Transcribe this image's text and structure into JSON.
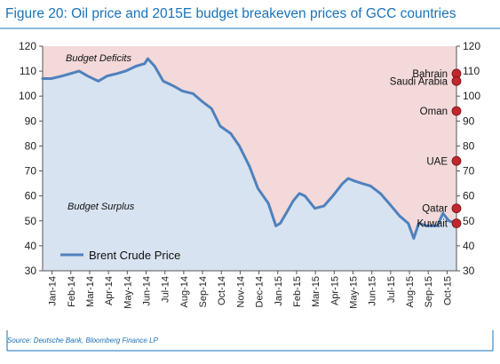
{
  "figure": {
    "title": "Figure 20: Oil price and 2015E budget breakeven prices of GCC countries",
    "source": "Source: Deutsche Bank, Bloomberg Finance LP"
  },
  "chart_data": {
    "type": "line",
    "title": "Figure 20: Oil price and 2015E budget breakeven prices of GCC countries",
    "xlabel": "",
    "ylabel": "",
    "ylim": [
      30,
      120
    ],
    "yticks": [
      30,
      40,
      50,
      60,
      70,
      80,
      90,
      100,
      110,
      120
    ],
    "grid": false,
    "legend_position": "bottom-left",
    "x_ticks": [
      "Jan-14",
      "Feb-14",
      "Mar-14",
      "Apr-14",
      "May-14",
      "Jun-14",
      "Jul-14",
      "Aug-14",
      "Sep-14",
      "Oct-14",
      "Nov-14",
      "Dec-14",
      "Jan-15",
      "Feb-15",
      "Mar-15",
      "Apr-15",
      "May-15",
      "Jun-15",
      "Jul-15",
      "Aug-15",
      "Sep-15",
      "Oct-15"
    ],
    "regions": [
      {
        "label": "Budget Deficits",
        "color": "#f3d9d9"
      },
      {
        "label": "Budget Surplus",
        "color": "#d7e3f1"
      }
    ],
    "series": [
      {
        "name": "Brent Crude Price",
        "color": "#4f81bd",
        "x": [
          "2014-01-01",
          "2014-01-15",
          "2014-02-01",
          "2014-02-15",
          "2014-03-01",
          "2014-03-15",
          "2014-04-01",
          "2014-04-15",
          "2014-05-01",
          "2014-05-15",
          "2014-06-01",
          "2014-06-15",
          "2014-06-20",
          "2014-07-01",
          "2014-07-15",
          "2014-08-01",
          "2014-08-15",
          "2014-09-01",
          "2014-09-15",
          "2014-10-01",
          "2014-10-15",
          "2014-11-01",
          "2014-11-15",
          "2014-12-01",
          "2014-12-15",
          "2015-01-01",
          "2015-01-13",
          "2015-01-20",
          "2015-02-01",
          "2015-02-10",
          "2015-02-20",
          "2015-03-01",
          "2015-03-17",
          "2015-04-01",
          "2015-04-15",
          "2015-05-01",
          "2015-05-10",
          "2015-05-20",
          "2015-06-01",
          "2015-06-15",
          "2015-07-01",
          "2015-07-15",
          "2015-08-01",
          "2015-08-15",
          "2015-08-24",
          "2015-09-01",
          "2015-09-15",
          "2015-10-01",
          "2015-10-10",
          "2015-10-20",
          "2015-11-01"
        ],
        "values": [
          107,
          107,
          108,
          109,
          110,
          108,
          106,
          108,
          109,
          110,
          112,
          113,
          115,
          112,
          106,
          104,
          102,
          101,
          98,
          95,
          88,
          85,
          80,
          72,
          63,
          57,
          48,
          49,
          54,
          58,
          61,
          60,
          55,
          56,
          60,
          65,
          67,
          66,
          65,
          64,
          61,
          57,
          52,
          49,
          43,
          49,
          48,
          48,
          53,
          50,
          49
        ]
      }
    ],
    "breakevens": [
      {
        "country": "Bahrain",
        "value": 109
      },
      {
        "country": "Saudi Arabia",
        "value": 106
      },
      {
        "country": "Oman",
        "value": 94
      },
      {
        "country": "UAE",
        "value": 74
      },
      {
        "country": "Qatar",
        "value": 55
      },
      {
        "country": "Kuwait",
        "value": 49
      }
    ]
  }
}
